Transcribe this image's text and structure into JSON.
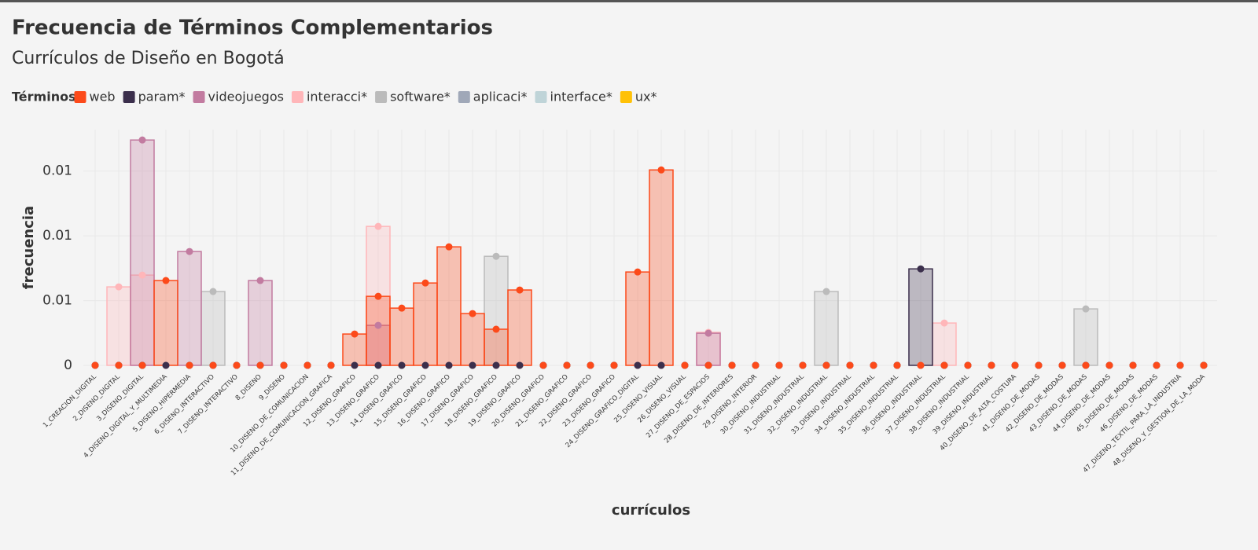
{
  "chart_data": {
    "type": "step-bar",
    "title": "Frecuencia de Términos Complementarios",
    "subtitle": "Currículos de Diseño en Bogotá",
    "legend_title": "Términos",
    "x_label": "currículos",
    "y_label": "frecuencia",
    "ylim": [
      0,
      0.0182
    ],
    "yticks": [
      0,
      {
        "value": 0.005,
        "label": "0.01"
      },
      {
        "value": 0.01,
        "label": "0.01"
      },
      {
        "value": 0.015,
        "label": "0.01"
      }
    ],
    "grid": true,
    "categories": [
      "1_CREACION_DIGITAL",
      "2_DISENO_DIGITAL",
      "3_DISENO_DIGITAL",
      "4_DISENO_DIGITAL_Y_MULTIMEDIA",
      "5_DISENO_HIPERMEDIA",
      "6_DISENO_INTERACTIVO",
      "7_DISENO_INTERACTIVO",
      "8_DISENO",
      "9_DISENO",
      "10_DISENO_DE_COMUNICACION",
      "11_DISENO_DE_COMUNICACION_GRAFICA",
      "12_DISENO_GRAFICO",
      "13_DISENO_GRAFICO",
      "14_DISENO_GRAFICO",
      "15_DISENO_GRAFICO",
      "16_DISENO_GRAFICO",
      "17_DISENO_GRAFICO",
      "18_DISENO_GRAFICO",
      "19_DISENO_GRAFICO",
      "20_DISENO_GRAFICO",
      "21_DISENO_GRAFICO",
      "22_DISENO_GRAFICO",
      "23_DISENO_GRAFICO",
      "24_DISENO_GRAFICO_DIGITAL",
      "25_DISENO_VISUAL",
      "26_DISENO_VISUAL",
      "27_DISENO_DE_ESPACIOS",
      "28_DISENO_DE_INTERIORES",
      "29_DISENO_INTERIOR",
      "30_DISENO_INDUSTRIAL",
      "31_DISENO_INDUSTRIAL",
      "32_DISENO_INDUSTRIAL",
      "33_DISENO_INDUSTRIAL",
      "34_DISENO_INDUSTRIAL",
      "35_DISENO_INDUSTRIAL",
      "36_DISENO_INDUSTRIAL",
      "37_DISENO_INDUSTRIAL",
      "38_DISENO_INDUSTRIAL",
      "39_DISENO_INDUSTRIAL",
      "40_DISENO_DE_ALTA_COSTURA",
      "41_DISENO_DE_MODAS",
      "42_DISENO_DE_MODAS",
      "43_DISENO_DE_MODAS",
      "44_DISENO_DE_MODAS",
      "45_DISENO_DE_MODAS",
      "46_DISENO_DE_MODAS",
      "47_DISENO_TEXTIL_PARA_LA_INDUSTRIA",
      "48_DISENO_Y_GESTION_DE_LA_MODA"
    ],
    "series": [
      {
        "name": "web",
        "color": "#fc4a1a",
        "values": [
          0,
          0,
          0,
          0.00655,
          0,
          0,
          0,
          0,
          0,
          0,
          0,
          0.00242,
          0.00533,
          0.00442,
          0.00636,
          0.00915,
          0.004,
          0.00279,
          0.00582,
          0,
          0,
          0,
          0,
          0.00721,
          0.01509,
          0,
          0,
          0,
          0,
          0,
          0,
          0,
          0,
          0,
          0,
          0,
          0,
          0,
          0,
          0,
          0,
          0,
          0,
          0,
          0,
          0,
          0,
          0
        ]
      },
      {
        "name": "param*",
        "color": "#3b2f4c",
        "values": [
          0,
          0,
          0,
          0,
          0,
          0,
          0,
          0,
          0,
          0,
          0,
          0,
          0,
          0,
          0,
          0,
          0,
          0,
          0,
          0,
          0,
          0,
          0,
          0,
          0,
          0,
          0,
          0,
          0,
          0,
          0,
          0,
          0,
          0,
          0,
          0.00745,
          0,
          0,
          0,
          0,
          0,
          0,
          0,
          0,
          0,
          0,
          0,
          0
        ]
      },
      {
        "name": "videojuegos",
        "color": "#c27ba0",
        "values": [
          0,
          0,
          0.0174,
          0,
          0.00879,
          0,
          0,
          0.00655,
          0,
          0,
          0,
          0,
          0.00309,
          0,
          0,
          0,
          0,
          0,
          0,
          0,
          0,
          0,
          0,
          0,
          0,
          0,
          0.00248,
          0,
          0,
          0,
          0,
          0,
          0,
          0,
          0,
          0,
          0,
          0,
          0,
          0,
          0,
          0,
          0,
          0,
          0,
          0,
          0,
          0
        ]
      },
      {
        "name": "interacci*",
        "color": "#ffb6b9",
        "values": [
          0,
          0.00606,
          0.00697,
          0,
          0,
          0,
          0,
          0,
          0,
          0,
          0,
          0,
          0.01073,
          0,
          0,
          0,
          0,
          0,
          0,
          0,
          0,
          0,
          0,
          0,
          0,
          0,
          0.00255,
          0,
          0,
          0,
          0,
          0,
          0,
          0,
          0,
          0,
          0.00327,
          0,
          0,
          0,
          0,
          0,
          0,
          0,
          0,
          0,
          0,
          0
        ]
      },
      {
        "name": "software*",
        "color": "#bbbbbb",
        "values": [
          0,
          0,
          0,
          0,
          0,
          0.0057,
          0,
          0,
          0,
          0,
          0,
          0,
          0,
          0,
          0,
          0,
          0,
          0.00842,
          0,
          0,
          0,
          0,
          0,
          0,
          0,
          0,
          0,
          0,
          0,
          0,
          0,
          0.0057,
          0,
          0,
          0,
          0,
          0,
          0,
          0,
          0,
          0,
          0,
          0.00436,
          0,
          0,
          0,
          0,
          0
        ]
      },
      {
        "name": "aplicaci*",
        "color": "#a0a8b8",
        "values": [
          0,
          0,
          0,
          0,
          0,
          0,
          0,
          0,
          0,
          0,
          0,
          0,
          0,
          0,
          0,
          0,
          0,
          0,
          0,
          0,
          0,
          0,
          0,
          0,
          0,
          0,
          0,
          0,
          0,
          0,
          0,
          0,
          0,
          0,
          0,
          0,
          0,
          0,
          0,
          0,
          0,
          0,
          0,
          0,
          0,
          0,
          0,
          0
        ]
      },
      {
        "name": "interface*",
        "color": "#bfd4d8",
        "values": [
          0,
          0,
          0,
          0,
          0,
          0,
          0,
          0,
          0,
          0,
          0,
          0,
          0,
          0,
          0,
          0,
          0,
          0,
          0,
          0,
          0,
          0,
          0,
          0,
          0,
          0,
          0,
          0,
          0,
          0,
          0,
          0,
          0,
          0,
          0,
          0,
          0,
          0,
          0,
          0,
          0,
          0,
          0,
          0,
          0,
          0,
          0,
          0
        ]
      },
      {
        "name": "ux*",
        "color": "#ffc107",
        "values": [
          0,
          0,
          0,
          0,
          0,
          0,
          0,
          0,
          0,
          0,
          0,
          0,
          0,
          0,
          0,
          0,
          0,
          0,
          0,
          0,
          0,
          0,
          0,
          0,
          0,
          0,
          0,
          0,
          0,
          0,
          0,
          0,
          0,
          0,
          0,
          0,
          0,
          0,
          0,
          0,
          0,
          0,
          0,
          0,
          0,
          0,
          0,
          0
        ]
      }
    ]
  }
}
